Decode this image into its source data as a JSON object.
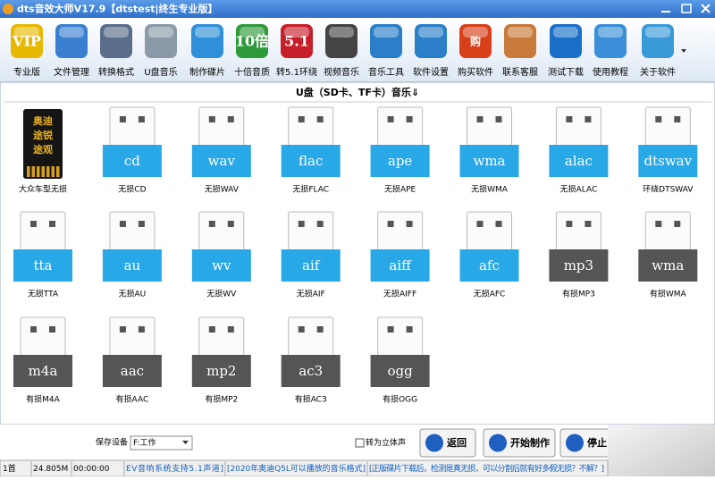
{
  "window": {
    "title": "dts音效大师V17.9【dtstest|终生专业版】"
  },
  "toolbar": [
    {
      "label": "专业版",
      "badge": "VIP",
      "color": "#e8b800"
    },
    {
      "label": "文件管理",
      "color": "#3a7fd0"
    },
    {
      "label": "转换格式",
      "color": "#5a6e8c"
    },
    {
      "label": "U盘音乐",
      "color": "#8a9aa8"
    },
    {
      "label": "制作碟片",
      "color": "#2f8fd8"
    },
    {
      "label": "十倍音质",
      "badge": "10倍",
      "color": "#2f9a3a"
    },
    {
      "label": "转5.1环绕",
      "badge": "5.1",
      "color": "#c8202a"
    },
    {
      "label": "视频音乐",
      "color": "#444444"
    },
    {
      "label": "音乐工具",
      "color": "#2a7fc8"
    },
    {
      "label": "软件设置",
      "color": "#2a7fc8"
    },
    {
      "label": "购买软件",
      "badge": "购",
      "color": "#d8401a"
    },
    {
      "label": "联系客服",
      "color": "#c87a3a"
    },
    {
      "label": "测试下载",
      "color": "#1a6fc8"
    },
    {
      "label": "使用教程",
      "color": "#3a8fd8"
    },
    {
      "label": "关于软件",
      "color": "#3a9ad8"
    }
  ],
  "heading": "U盘（SD卡、TF卡）音乐⇓",
  "sd_card": {
    "lines": [
      "奥迪",
      "途锐",
      "途观"
    ],
    "caption": "大众车型无损"
  },
  "items": [
    {
      "label": "cd",
      "caption": "无损CD",
      "color": "#29a8e8"
    },
    {
      "label": "wav",
      "caption": "无损WAV",
      "color": "#29a8e8"
    },
    {
      "label": "flac",
      "caption": "无损FLAC",
      "color": "#29a8e8"
    },
    {
      "label": "ape",
      "caption": "无损APE",
      "color": "#29a8e8"
    },
    {
      "label": "wma",
      "caption": "无损WMA",
      "color": "#29a8e8"
    },
    {
      "label": "alac",
      "caption": "无损ALAC",
      "color": "#29a8e8"
    },
    {
      "label": "dtswav",
      "caption": "环绕DTSWAV",
      "color": "#29a8e8"
    },
    {
      "label": "tta",
      "caption": "无损TTA",
      "color": "#29a8e8"
    },
    {
      "label": "au",
      "caption": "无损AU",
      "color": "#29a8e8"
    },
    {
      "label": "wv",
      "caption": "无损WV",
      "color": "#29a8e8"
    },
    {
      "label": "aif",
      "caption": "无损AIF",
      "color": "#29a8e8"
    },
    {
      "label": "aiff",
      "caption": "无损AIFF",
      "color": "#29a8e8"
    },
    {
      "label": "afc",
      "caption": "无损AFC",
      "color": "#29a8e8"
    },
    {
      "label": "mp3",
      "caption": "有损MP3",
      "color": "#555555"
    },
    {
      "label": "wma",
      "caption": "有损WMA",
      "color": "#555555"
    },
    {
      "label": "m4a",
      "caption": "有损M4A",
      "color": "#555555"
    },
    {
      "label": "aac",
      "caption": "有损AAC",
      "color": "#555555"
    },
    {
      "label": "mp2",
      "caption": "有损MP2",
      "color": "#555555"
    },
    {
      "label": "ac3",
      "caption": "有损AC3",
      "color": "#555555"
    },
    {
      "label": "ogg",
      "caption": "有损OGG",
      "color": "#555555"
    }
  ],
  "footer": {
    "device_label": "保存设备",
    "device_value": "F:工作",
    "stereo_label": "转为立体声",
    "buttons": [
      "返回",
      "开始制作",
      "停止"
    ]
  },
  "status": [
    "1首",
    "24.805M",
    "00:00:00",
    "EV音响系统支持5.1声道]",
    "[2020年奥迪Q5L可以播放的音乐格式]",
    "[正版碟片下载后，检测是真无损，可以分割后就有好多假无损？不解？]"
  ]
}
